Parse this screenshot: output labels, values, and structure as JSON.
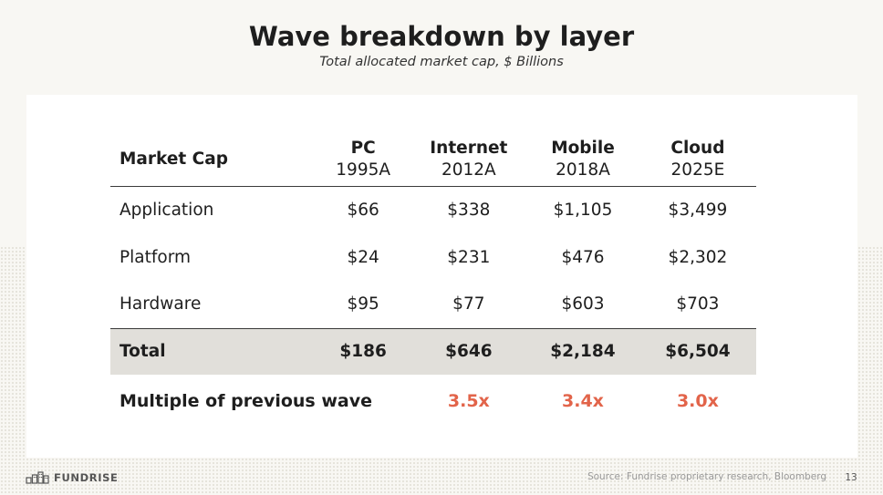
{
  "title": "Wave breakdown by layer",
  "subtitle": "Total allocated market cap, $ Billions",
  "table": {
    "header": {
      "label": "Market Cap",
      "columns": [
        {
          "name": "PC",
          "year": "1995A"
        },
        {
          "name": "Internet",
          "year": "2012A"
        },
        {
          "name": "Mobile",
          "year": "2018A"
        },
        {
          "name": "Cloud",
          "year": "2025E"
        }
      ]
    },
    "rows": [
      {
        "label": "Application",
        "values": [
          "$66",
          "$338",
          "$1,105",
          "$3,499"
        ]
      },
      {
        "label": "Platform",
        "values": [
          "$24",
          "$231",
          "$476",
          "$2,302"
        ]
      },
      {
        "label": "Hardware",
        "values": [
          "$95",
          "$77",
          "$603",
          "$703"
        ]
      }
    ],
    "total": {
      "label": "Total",
      "values": [
        "$186",
        "$646",
        "$2,184",
        "$6,504"
      ]
    },
    "multiple": {
      "label": "Multiple of previous wave",
      "values": [
        "",
        "3.5x",
        "3.4x",
        "3.0x"
      ]
    }
  },
  "footer": {
    "brand": "FUNDRISE",
    "source": "Source: Fundrise proprietary research, Bloomberg",
    "page": "13"
  },
  "colors": {
    "accent": "#e2644a",
    "total_row_bg": "#e1dfda",
    "page_bg": "#f8f7f3"
  },
  "icons": {
    "brand_logo": "fundrise-buildings-logo-icon"
  }
}
